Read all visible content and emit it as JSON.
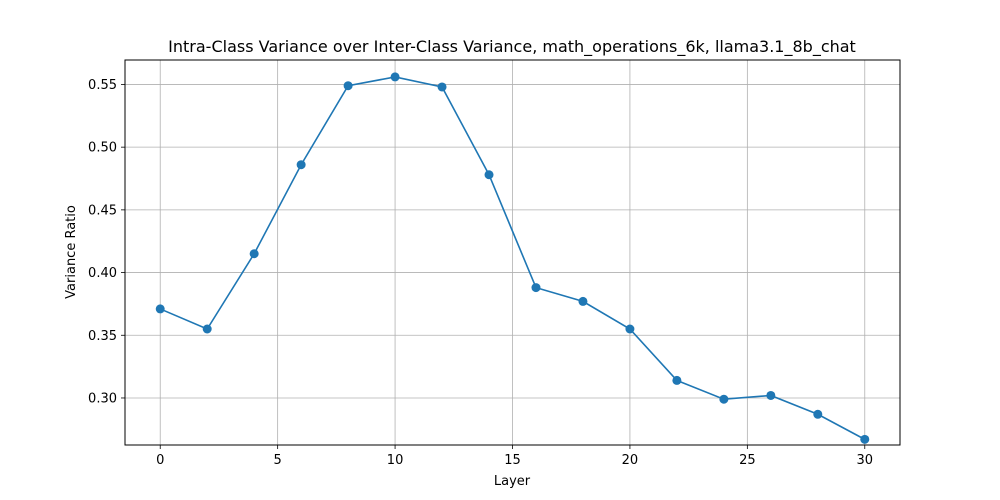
{
  "chart_data": {
    "type": "line",
    "title": "Intra-Class Variance over Inter-Class Variance, math_operations_6k, llama3.1_8b_chat",
    "xlabel": "Layer",
    "ylabel": "Variance Ratio",
    "xlim": [
      -1.5,
      31.5
    ],
    "ylim": [
      0.2625,
      0.5695
    ],
    "xticks": [
      0,
      5,
      10,
      15,
      20,
      25,
      30
    ],
    "yticks": [
      0.3,
      0.35,
      0.4,
      0.45,
      0.5,
      0.55
    ],
    "ytick_labels": [
      "0.30",
      "0.35",
      "0.40",
      "0.45",
      "0.50",
      "0.55"
    ],
    "grid": true,
    "marker": "circle",
    "series": [
      {
        "color": "#1f77b4",
        "x": [
          0,
          2,
          4,
          6,
          8,
          10,
          12,
          14,
          16,
          18,
          20,
          22,
          24,
          26,
          28,
          30
        ],
        "y": [
          0.371,
          0.355,
          0.415,
          0.486,
          0.549,
          0.556,
          0.548,
          0.478,
          0.388,
          0.377,
          0.355,
          0.314,
          0.299,
          0.302,
          0.287,
          0.267
        ]
      }
    ]
  }
}
